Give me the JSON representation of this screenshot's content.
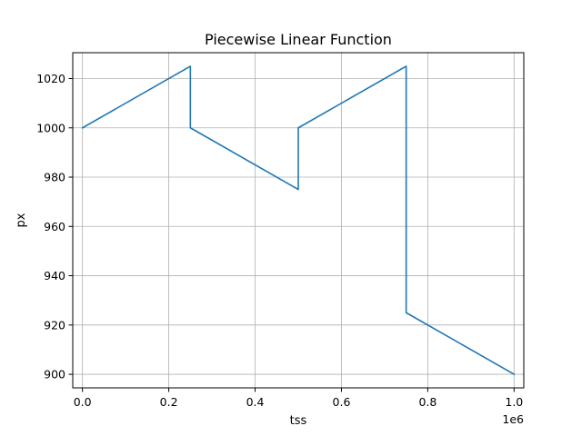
{
  "chart_data": {
    "type": "line",
    "title": "Piecewise Linear Function",
    "xlabel": "tss",
    "ylabel": "px",
    "x_offset_text": "1e6",
    "x_scale": 1000000,
    "xlim": [
      -22500,
      1022500
    ],
    "ylim": [
      894.5,
      1030.5
    ],
    "grid": true,
    "x_ticks": [
      0,
      200000,
      400000,
      600000,
      800000,
      1000000
    ],
    "x_tick_labels": [
      "0.0",
      "0.2",
      "0.4",
      "0.6",
      "0.8",
      "1.0"
    ],
    "y_ticks": [
      900,
      920,
      940,
      960,
      980,
      1000,
      1020
    ],
    "y_tick_labels": [
      "900",
      "920",
      "940",
      "960",
      "980",
      "1000",
      "1020"
    ],
    "series": [
      {
        "color": "#1f77b4",
        "x": [
          0,
          249999,
          250000,
          499999,
          500000,
          749999,
          750000,
          1000000
        ],
        "y": [
          1000,
          1025,
          1000,
          975,
          1000,
          1025,
          925,
          900
        ]
      }
    ]
  }
}
